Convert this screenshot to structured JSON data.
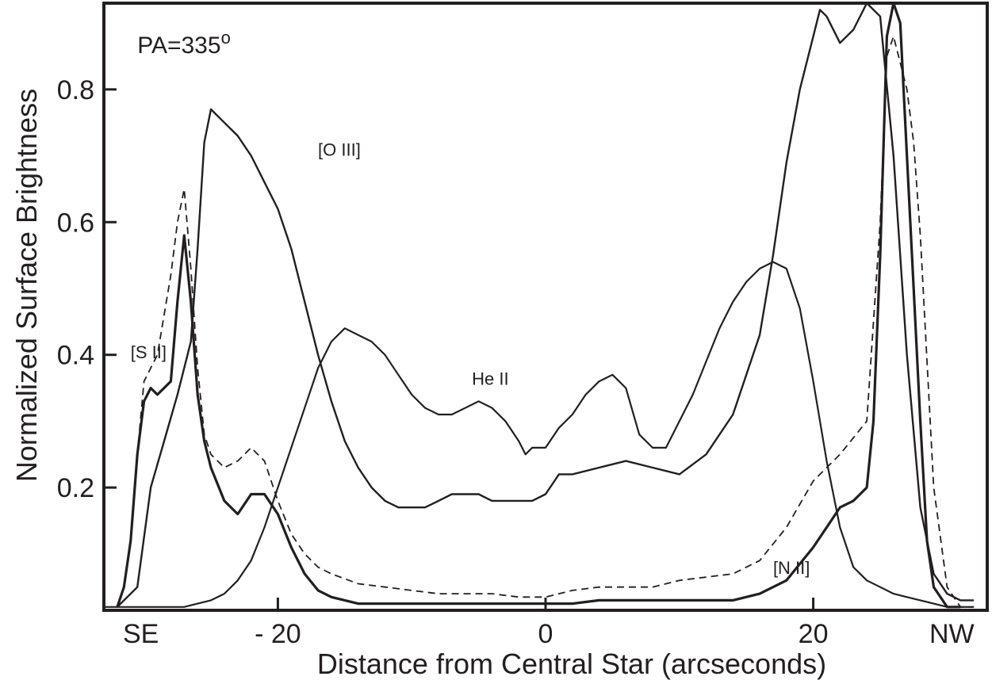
{
  "chart_data": {
    "type": "line",
    "title": "",
    "xlabel": "Distance from Central Star (arcseconds)",
    "ylabel": "Normalized Surface Brightness",
    "xlim": [
      -33,
      33
    ],
    "ylim": [
      0.015,
      0.93
    ],
    "grid": false,
    "x_ticks": [
      -20,
      0,
      20
    ],
    "x_tick_labels": [
      "- 20",
      "0",
      "20"
    ],
    "y_ticks": [
      0.2,
      0.4,
      0.6,
      0.8
    ],
    "y_tick_labels": [
      "0.2",
      "0.4",
      "0.6",
      "0.8"
    ],
    "x_end_labels": {
      "left": "SE",
      "right": "NW"
    },
    "annotations": [
      {
        "text": "PA=335",
        "superscript": "o",
        "x": -30.5,
        "y": 0.855
      },
      {
        "text": "[O III]",
        "x": -17.0,
        "y": 0.7
      },
      {
        "text": "[S II]",
        "x": -31.0,
        "y": 0.395
      },
      {
        "text": "He II",
        "x": -5.5,
        "y": 0.355
      },
      {
        "text": "[N II]",
        "x": 17.0,
        "y": 0.07
      }
    ],
    "series": [
      {
        "name": "[O III]",
        "style": "solid",
        "width": 2.4,
        "x": [
          -32,
          -30.5,
          -29.5,
          -28.5,
          -27.5,
          -26.5,
          -26,
          -25.5,
          -25,
          -24,
          -23,
          -22,
          -20,
          -19,
          -18,
          -17,
          -16,
          -15,
          -14,
          -13,
          -12,
          -11,
          -10,
          -9,
          -8,
          -7,
          -6,
          -5,
          -4,
          -3,
          -2,
          -1,
          0,
          1,
          2,
          4,
          6,
          8,
          10,
          12,
          14,
          16,
          17,
          18,
          19,
          20,
          20.5,
          21,
          22,
          23,
          24,
          25,
          26,
          27,
          28,
          29,
          30,
          31,
          32
        ],
        "y": [
          0.02,
          0.05,
          0.2,
          0.27,
          0.34,
          0.42,
          0.56,
          0.72,
          0.77,
          0.75,
          0.73,
          0.7,
          0.62,
          0.56,
          0.48,
          0.4,
          0.33,
          0.27,
          0.23,
          0.2,
          0.18,
          0.17,
          0.17,
          0.17,
          0.18,
          0.19,
          0.19,
          0.19,
          0.18,
          0.18,
          0.18,
          0.18,
          0.19,
          0.22,
          0.22,
          0.23,
          0.24,
          0.23,
          0.22,
          0.25,
          0.31,
          0.43,
          0.55,
          0.69,
          0.8,
          0.88,
          0.92,
          0.91,
          0.87,
          0.89,
          0.93,
          0.91,
          0.7,
          0.4,
          0.17,
          0.07,
          0.04,
          0.03,
          0.03
        ]
      },
      {
        "name": "[S II]",
        "style": "dashed",
        "width": 1.8,
        "x": [
          -32,
          -31.5,
          -31,
          -30.5,
          -30,
          -29,
          -28,
          -27.5,
          -27,
          -26.5,
          -26,
          -25.5,
          -25,
          -24,
          -23,
          -22,
          -21,
          -20,
          -19,
          -18,
          -17,
          -16,
          -14,
          -12,
          -10,
          -8,
          -6,
          -4,
          -2,
          0,
          2,
          4,
          6,
          8,
          10,
          12,
          14,
          16,
          18,
          20,
          22,
          24,
          25,
          25.5,
          26,
          26.5,
          27,
          27.5,
          28,
          29,
          30,
          31,
          32
        ],
        "y": [
          0.02,
          0.05,
          0.12,
          0.25,
          0.36,
          0.4,
          0.52,
          0.6,
          0.65,
          0.53,
          0.38,
          0.28,
          0.25,
          0.23,
          0.24,
          0.26,
          0.24,
          0.18,
          0.13,
          0.1,
          0.08,
          0.07,
          0.055,
          0.05,
          0.045,
          0.04,
          0.04,
          0.04,
          0.035,
          0.035,
          0.045,
          0.05,
          0.05,
          0.05,
          0.06,
          0.065,
          0.07,
          0.09,
          0.14,
          0.21,
          0.25,
          0.3,
          0.6,
          0.85,
          0.88,
          0.84,
          0.8,
          0.72,
          0.58,
          0.2,
          0.05,
          0.02,
          0.02
        ]
      },
      {
        "name": "[N II]",
        "style": "solid",
        "width": 3.2,
        "x": [
          -32,
          -31.5,
          -31,
          -30.5,
          -30,
          -29.5,
          -29,
          -28,
          -27.5,
          -27,
          -26.5,
          -26,
          -25.5,
          -25,
          -24,
          -23,
          -22,
          -21,
          -20,
          -19,
          -18,
          -17,
          -16,
          -15,
          -14,
          -12,
          -10,
          -8,
          -6,
          -4,
          -2,
          0,
          2,
          4,
          6,
          8,
          10,
          12,
          14,
          16,
          18,
          20,
          21,
          22,
          23,
          24,
          24.5,
          25,
          25.5,
          26,
          26.5,
          27,
          27.5,
          28,
          28.5,
          29,
          30,
          31
        ],
        "y": [
          0.02,
          0.05,
          0.12,
          0.25,
          0.33,
          0.35,
          0.34,
          0.36,
          0.48,
          0.58,
          0.48,
          0.34,
          0.27,
          0.23,
          0.18,
          0.16,
          0.19,
          0.19,
          0.16,
          0.11,
          0.07,
          0.045,
          0.035,
          0.03,
          0.025,
          0.025,
          0.025,
          0.025,
          0.025,
          0.025,
          0.025,
          0.025,
          0.025,
          0.03,
          0.03,
          0.03,
          0.03,
          0.03,
          0.03,
          0.04,
          0.06,
          0.11,
          0.14,
          0.17,
          0.18,
          0.2,
          0.3,
          0.55,
          0.88,
          0.93,
          0.9,
          0.7,
          0.5,
          0.3,
          0.12,
          0.05,
          0.02,
          0.02
        ]
      },
      {
        "name": "He II",
        "style": "solid",
        "width": 2.2,
        "x": [
          -33,
          -31,
          -30,
          -28,
          -27,
          -26,
          -25,
          -24,
          -23,
          -22,
          -21,
          -20,
          -19,
          -18,
          -17,
          -16,
          -15,
          -14,
          -13,
          -12,
          -11,
          -10,
          -9,
          -8,
          -7,
          -6,
          -5,
          -4,
          -3,
          -2,
          -1.5,
          -1,
          0,
          1,
          2,
          3,
          4,
          5,
          6,
          7,
          8,
          9,
          10,
          11,
          12,
          13,
          14,
          15,
          16,
          17,
          18,
          19,
          20,
          21,
          22,
          23,
          24,
          25,
          26,
          27,
          28,
          29,
          30,
          31,
          32
        ],
        "y": [
          0.02,
          0.02,
          0.02,
          0.02,
          0.02,
          0.025,
          0.03,
          0.04,
          0.06,
          0.09,
          0.14,
          0.2,
          0.26,
          0.32,
          0.38,
          0.42,
          0.44,
          0.43,
          0.42,
          0.4,
          0.37,
          0.34,
          0.32,
          0.31,
          0.31,
          0.32,
          0.33,
          0.32,
          0.3,
          0.27,
          0.25,
          0.26,
          0.26,
          0.29,
          0.31,
          0.34,
          0.36,
          0.37,
          0.35,
          0.28,
          0.26,
          0.26,
          0.3,
          0.34,
          0.39,
          0.44,
          0.48,
          0.51,
          0.53,
          0.54,
          0.53,
          0.47,
          0.36,
          0.24,
          0.14,
          0.08,
          0.06,
          0.05,
          0.04,
          0.035,
          0.03,
          0.025,
          0.02,
          0.02,
          0.02
        ]
      }
    ]
  }
}
